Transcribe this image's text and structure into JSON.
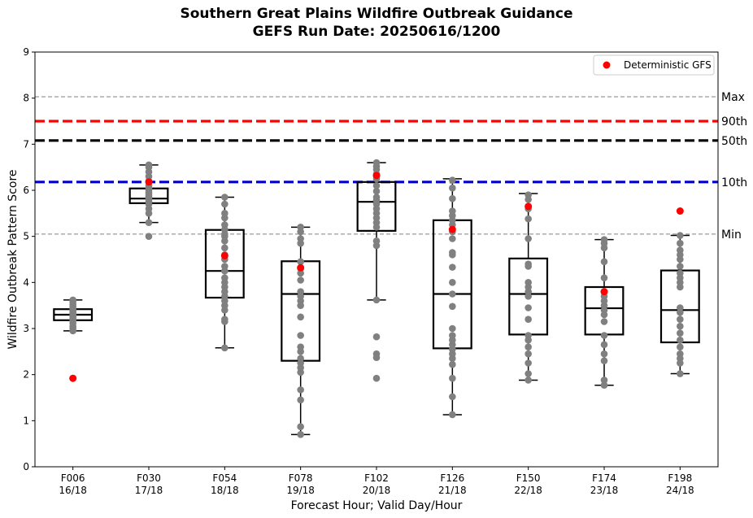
{
  "chart_data": {
    "type": "box",
    "title": "Southern Great Plains Wildfire Outbreak Guidance",
    "subtitle": "GEFS Run Date: 20250616/1200",
    "xlabel": "Forecast Hour; Valid Day/Hour",
    "ylabel": "Wildfire Outbreak Pattern Score",
    "ylim": [
      0,
      9
    ],
    "yticks": [
      "0",
      "1",
      "2",
      "3",
      "4",
      "5",
      "6",
      "7",
      "8",
      "9"
    ],
    "grid": false,
    "legend": {
      "position": "top-right",
      "entries": [
        "Deterministic GFS"
      ]
    },
    "categories": [
      {
        "hour": "F006",
        "valid": "16/18"
      },
      {
        "hour": "F030",
        "valid": "17/18"
      },
      {
        "hour": "F054",
        "valid": "18/18"
      },
      {
        "hour": "F078",
        "valid": "19/18"
      },
      {
        "hour": "F102",
        "valid": "20/18"
      },
      {
        "hour": "F126",
        "valid": "21/18"
      },
      {
        "hour": "F150",
        "valid": "22/18"
      },
      {
        "hour": "F174",
        "valid": "23/18"
      },
      {
        "hour": "F198",
        "valid": "24/18"
      }
    ],
    "reference_lines": [
      {
        "label": "Max",
        "value": 8.03,
        "color": "#808080",
        "style": "dashed-thin"
      },
      {
        "label": "90th",
        "value": 7.5,
        "color": "#ff0000",
        "style": "dashed-thick"
      },
      {
        "label": "50th",
        "value": 7.08,
        "color": "#000000",
        "style": "dashed-thick"
      },
      {
        "label": "10th",
        "value": 6.18,
        "color": "#0000cc",
        "style": "dashed-thick"
      },
      {
        "label": "Min",
        "value": 5.05,
        "color": "#808080",
        "style": "dashed-thin"
      }
    ],
    "boxes": [
      {
        "whisker_low": 2.95,
        "q1": 3.18,
        "median": 3.3,
        "q3": 3.42,
        "whisker_high": 3.62
      },
      {
        "whisker_low": 5.3,
        "q1": 5.72,
        "median": 5.82,
        "q3": 6.04,
        "whisker_high": 6.55
      },
      {
        "whisker_low": 2.58,
        "q1": 3.67,
        "median": 4.25,
        "q3": 5.14,
        "whisker_high": 5.85
      },
      {
        "whisker_low": 0.7,
        "q1": 2.3,
        "median": 3.75,
        "q3": 4.46,
        "whisker_high": 5.2
      },
      {
        "whisker_low": 3.62,
        "q1": 5.12,
        "median": 5.75,
        "q3": 6.18,
        "whisker_high": 6.6
      },
      {
        "whisker_low": 1.13,
        "q1": 2.57,
        "median": 3.75,
        "q3": 5.35,
        "whisker_high": 6.25
      },
      {
        "whisker_low": 1.88,
        "q1": 2.87,
        "median": 3.75,
        "q3": 4.52,
        "whisker_high": 5.93
      },
      {
        "whisker_low": 1.77,
        "q1": 2.87,
        "median": 3.44,
        "q3": 3.9,
        "whisker_high": 4.93
      },
      {
        "whisker_low": 2.02,
        "q1": 2.7,
        "median": 3.4,
        "q3": 4.26,
        "whisker_high": 5.02
      }
    ],
    "members": [
      [
        2.95,
        3.0,
        3.05,
        3.12,
        3.18,
        3.22,
        3.25,
        3.28,
        3.3,
        3.32,
        3.35,
        3.38,
        3.42,
        3.47,
        3.52,
        3.58,
        3.62
      ],
      [
        5.0,
        5.3,
        5.5,
        5.6,
        5.7,
        5.75,
        5.8,
        5.82,
        5.85,
        5.88,
        5.92,
        5.96,
        6.0,
        6.05,
        6.1,
        6.2,
        6.3,
        6.4,
        6.5,
        6.55
      ],
      [
        2.58,
        3.15,
        3.2,
        3.4,
        3.5,
        3.6,
        3.7,
        3.8,
        3.9,
        4.0,
        4.1,
        4.25,
        4.35,
        4.5,
        4.6,
        4.75,
        4.9,
        5.0,
        5.05,
        5.15,
        5.25,
        5.4,
        5.5,
        5.7,
        5.85
      ],
      [
        0.7,
        0.87,
        1.45,
        1.67,
        2.05,
        2.15,
        2.25,
        2.35,
        2.5,
        2.6,
        2.85,
        3.25,
        3.5,
        3.6,
        3.7,
        3.8,
        4.05,
        4.2,
        4.3,
        4.45,
        4.85,
        4.95,
        5.1,
        5.2
      ],
      [
        1.92,
        2.37,
        2.45,
        2.82,
        3.62,
        4.8,
        4.9,
        5.2,
        5.3,
        5.4,
        5.5,
        5.6,
        5.7,
        5.78,
        5.85,
        5.98,
        6.1,
        6.25,
        6.35,
        6.45,
        6.52,
        6.6
      ],
      [
        1.13,
        1.52,
        1.92,
        2.22,
        2.35,
        2.45,
        2.55,
        2.65,
        2.75,
        2.85,
        3.0,
        3.48,
        3.75,
        4.0,
        4.33,
        4.6,
        4.65,
        4.95,
        5.1,
        5.25,
        5.35,
        5.45,
        5.55,
        5.82,
        6.05,
        6.22
      ],
      [
        1.88,
        2.02,
        2.25,
        2.45,
        2.6,
        2.75,
        2.85,
        3.2,
        3.45,
        3.7,
        3.8,
        3.9,
        4.0,
        4.35,
        4.4,
        4.95,
        5.38,
        5.6,
        5.8,
        5.9
      ],
      [
        1.77,
        1.88,
        2.3,
        2.45,
        2.65,
        2.85,
        3.15,
        3.3,
        3.4,
        3.5,
        3.6,
        3.7,
        3.8,
        4.1,
        4.45,
        4.75,
        4.85,
        4.93
      ],
      [
        2.02,
        2.25,
        2.35,
        2.45,
        2.6,
        2.75,
        2.9,
        3.05,
        3.2,
        3.35,
        3.45,
        3.9,
        4.0,
        4.1,
        4.2,
        4.35,
        4.5,
        4.6,
        4.7,
        4.85,
        5.02
      ]
    ],
    "deterministic_gfs": [
      1.92,
      6.18,
      4.58,
      4.32,
      6.32,
      5.15,
      5.65,
      3.8,
      5.55
    ],
    "colors": {
      "box": "#000000",
      "member": "#808080",
      "deterministic": "#ff0000"
    }
  }
}
